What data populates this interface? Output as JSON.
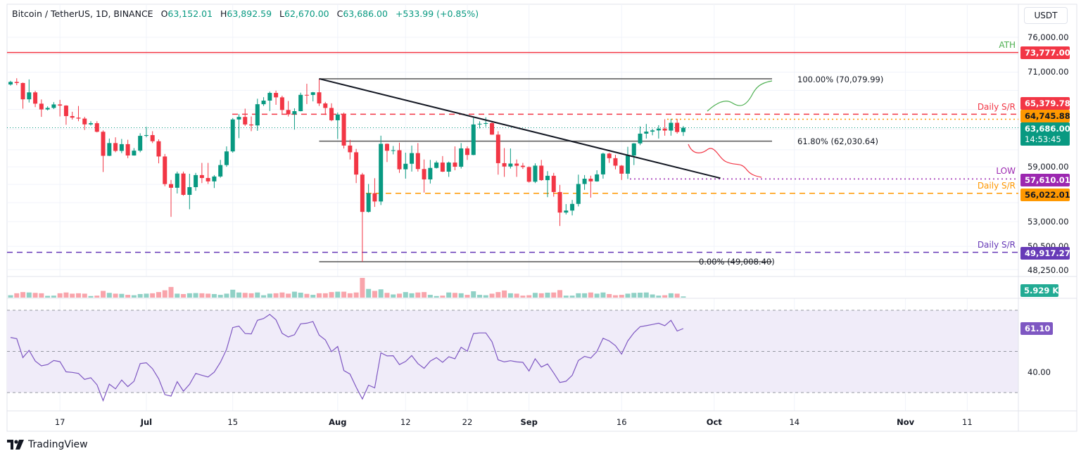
{
  "header": {
    "symbol": "Bitcoin / TetherUS, 1D, BINANCE",
    "open_label": "O",
    "open": "63,152.01",
    "high_label": "H",
    "high": "63,892.59",
    "low_label": "L",
    "low": "62,670.00",
    "close_label": "C",
    "close": "63,686.00",
    "change": "+533.99 (+0.85%)"
  },
  "currency_button": "USDT",
  "branding": "TradingView",
  "colors": {
    "up": "#089981",
    "down": "#f23645",
    "ath": "#f23645",
    "resistance": "#f23645",
    "support_orange": "#ff9800",
    "low": "#9c27b0",
    "support_purple": "#673ab7",
    "rsi": "#7e57c2"
  },
  "price_axis": {
    "scale": "log",
    "ticks": [
      "76,000.00",
      "71,000.00",
      "59,000.00",
      "53,000.00",
      "50,500.00",
      "48,250.00"
    ],
    "price_tags": {
      "ath": "73,777.00",
      "resistance": "65,379.78",
      "high_dotted": "64,745.88",
      "last": "63,686.00",
      "countdown": "14:53:45",
      "low": "57,610.01",
      "support": "56,022.01",
      "support_2": "49,917.27",
      "volume": "5.929 K",
      "rsi": "61.10"
    }
  },
  "annotations": {
    "ath": "ATH",
    "resistance": "Daily S/R",
    "low": "LOW",
    "support": "Daily S/R",
    "support_2": "Daily S/R",
    "fib_100": "100.00% (70,079.99)",
    "fib_618": "61.80% (62,030.64)",
    "fib_0": "0.00% (49,008.40)"
  },
  "rsi_axis": {
    "tick": "40.00"
  },
  "time_axis": [
    {
      "label": "17",
      "date": "2024-06-17",
      "month": false
    },
    {
      "label": "Jul",
      "date": "2024-07-01",
      "month": true
    },
    {
      "label": "15",
      "date": "2024-07-15",
      "month": false
    },
    {
      "label": "Aug",
      "date": "2024-08-01",
      "month": true
    },
    {
      "label": "12",
      "date": "2024-08-12",
      "month": false
    },
    {
      "label": "22",
      "date": "2024-08-22",
      "month": false
    },
    {
      "label": "Sep",
      "date": "2024-09-01",
      "month": true
    },
    {
      "label": "16",
      "date": "2024-09-16",
      "month": false
    },
    {
      "label": "Oct",
      "date": "2024-10-01",
      "month": true
    },
    {
      "label": "14",
      "date": "2024-10-14",
      "month": false
    },
    {
      "label": "Nov",
      "date": "2024-11-01",
      "month": true
    },
    {
      "label": "11",
      "date": "2024-11-11",
      "month": false
    }
  ],
  "chart_data": {
    "type": "candlestick",
    "columns": [
      "date",
      "open",
      "high",
      "low",
      "close",
      "volume_k"
    ],
    "candles": [
      [
        "2024-06-09",
        69300,
        69800,
        69150,
        69650,
        12
      ],
      [
        "2024-06-10",
        69650,
        70150,
        69200,
        69500,
        22
      ],
      [
        "2024-06-11",
        69500,
        69560,
        66100,
        67320,
        28
      ],
      [
        "2024-06-12",
        67320,
        69990,
        66900,
        68240,
        26
      ],
      [
        "2024-06-13",
        68240,
        68450,
        66300,
        66750,
        24
      ],
      [
        "2024-06-14",
        66750,
        67300,
        65050,
        66000,
        22
      ],
      [
        "2024-06-15",
        66000,
        66400,
        65870,
        66200,
        9
      ],
      [
        "2024-06-16",
        66200,
        66950,
        66050,
        66650,
        10
      ],
      [
        "2024-06-17",
        66650,
        67250,
        65100,
        66500,
        22
      ],
      [
        "2024-06-18",
        66500,
        66550,
        64050,
        65150,
        26
      ],
      [
        "2024-06-19",
        65150,
        65700,
        64700,
        64950,
        20
      ],
      [
        "2024-06-20",
        64950,
        66450,
        64500,
        64830,
        22
      ],
      [
        "2024-06-21",
        64830,
        65050,
        63400,
        64100,
        20
      ],
      [
        "2024-06-22",
        64100,
        64500,
        63950,
        64250,
        8
      ],
      [
        "2024-06-23",
        64250,
        64500,
        63100,
        63180,
        10
      ],
      [
        "2024-06-24",
        63180,
        63350,
        58400,
        60280,
        34
      ],
      [
        "2024-06-25",
        60280,
        62350,
        60250,
        61800,
        24
      ],
      [
        "2024-06-26",
        61800,
        62500,
        60700,
        60860,
        20
      ],
      [
        "2024-06-27",
        60860,
        62300,
        60600,
        61670,
        19
      ],
      [
        "2024-06-28",
        61670,
        62200,
        60000,
        60320,
        14
      ],
      [
        "2024-06-29",
        60320,
        61200,
        60300,
        60890,
        12
      ],
      [
        "2024-06-30",
        60890,
        63000,
        60700,
        62680,
        18
      ],
      [
        "2024-07-01",
        62680,
        63800,
        62500,
        62770,
        20
      ],
      [
        "2024-07-02",
        62770,
        63250,
        61800,
        62020,
        22
      ],
      [
        "2024-07-03",
        62020,
        62250,
        59400,
        60200,
        28
      ],
      [
        "2024-07-04",
        60200,
        60500,
        56800,
        57040,
        37
      ],
      [
        "2024-07-05",
        57040,
        57500,
        53500,
        56630,
        54
      ],
      [
        "2024-07-06",
        56630,
        58450,
        56000,
        58230,
        20
      ],
      [
        "2024-07-07",
        58230,
        58450,
        55750,
        55850,
        18
      ],
      [
        "2024-07-08",
        55850,
        58200,
        54300,
        56700,
        22
      ],
      [
        "2024-07-09",
        56700,
        58300,
        56300,
        58050,
        23
      ],
      [
        "2024-07-10",
        58050,
        59450,
        57150,
        57720,
        22
      ],
      [
        "2024-07-11",
        57720,
        59450,
        57050,
        57340,
        20
      ],
      [
        "2024-07-12",
        57340,
        58050,
        56600,
        57890,
        18
      ],
      [
        "2024-07-13",
        57890,
        59800,
        57750,
        59200,
        14
      ],
      [
        "2024-07-14",
        59200,
        61400,
        59000,
        60800,
        20
      ],
      [
        "2024-07-15",
        60800,
        64900,
        60650,
        64720,
        40
      ],
      [
        "2024-07-16",
        64720,
        65400,
        62400,
        65040,
        26
      ],
      [
        "2024-07-17",
        65040,
        66100,
        63900,
        64090,
        24
      ],
      [
        "2024-07-18",
        64090,
        65100,
        63250,
        63970,
        22
      ],
      [
        "2024-07-19",
        63970,
        67400,
        63300,
        66680,
        26
      ],
      [
        "2024-07-20",
        66680,
        67600,
        66450,
        67150,
        12
      ],
      [
        "2024-07-21",
        67150,
        68350,
        65800,
        68170,
        20
      ],
      [
        "2024-07-22",
        68170,
        68480,
        66600,
        67580,
        22
      ],
      [
        "2024-07-23",
        67580,
        67800,
        65450,
        65930,
        26
      ],
      [
        "2024-07-24",
        65930,
        67100,
        65100,
        65370,
        20
      ],
      [
        "2024-07-25",
        65370,
        66150,
        63450,
        65780,
        30
      ],
      [
        "2024-07-26",
        65780,
        68200,
        65750,
        67910,
        25
      ],
      [
        "2024-07-27",
        67910,
        69400,
        66700,
        67900,
        19
      ],
      [
        "2024-07-28",
        67900,
        68300,
        67050,
        68250,
        14
      ],
      [
        "2024-07-29",
        68250,
        70079.99,
        66450,
        66780,
        22
      ],
      [
        "2024-07-30",
        66780,
        66980,
        65300,
        66190,
        22
      ],
      [
        "2024-07-31",
        66190,
        66800,
        64500,
        64620,
        28
      ],
      [
        "2024-08-01",
        64620,
        65600,
        62300,
        65350,
        30
      ],
      [
        "2024-08-02",
        65350,
        65600,
        61150,
        61500,
        30
      ],
      [
        "2024-08-03",
        61500,
        62200,
        59850,
        60700,
        22
      ],
      [
        "2024-08-04",
        60700,
        61100,
        57150,
        58110,
        26
      ],
      [
        "2024-08-05",
        58110,
        58300,
        49008.4,
        54020,
        100
      ],
      [
        "2024-08-06",
        54020,
        57050,
        53950,
        56030,
        44
      ],
      [
        "2024-08-07",
        56030,
        57700,
        54550,
        55130,
        34
      ],
      [
        "2024-08-08",
        55130,
        62700,
        54750,
        61710,
        42
      ],
      [
        "2024-08-09",
        61710,
        61750,
        59550,
        60880,
        24
      ],
      [
        "2024-08-10",
        60880,
        61450,
        60450,
        60940,
        16
      ],
      [
        "2024-08-11",
        60940,
        61850,
        58300,
        58710,
        20
      ],
      [
        "2024-08-12",
        58710,
        60650,
        57650,
        59350,
        28
      ],
      [
        "2024-08-13",
        59350,
        61500,
        58450,
        60600,
        22
      ],
      [
        "2024-08-14",
        60600,
        61800,
        58450,
        58740,
        26
      ],
      [
        "2024-08-15",
        58740,
        59850,
        56100,
        57560,
        28
      ],
      [
        "2024-08-16",
        57560,
        59800,
        57100,
        58870,
        14
      ],
      [
        "2024-08-17",
        58870,
        59700,
        58800,
        59490,
        8
      ],
      [
        "2024-08-18",
        59490,
        60250,
        58400,
        58440,
        10
      ],
      [
        "2024-08-19",
        58440,
        59600,
        57850,
        59490,
        26
      ],
      [
        "2024-08-20",
        59490,
        61400,
        58600,
        59010,
        24
      ],
      [
        "2024-08-21",
        59010,
        61800,
        58800,
        61160,
        22
      ],
      [
        "2024-08-22",
        61160,
        61400,
        59800,
        60380,
        14
      ],
      [
        "2024-08-23",
        60380,
        64950,
        60350,
        64090,
        32
      ],
      [
        "2024-08-24",
        64090,
        64500,
        63600,
        64180,
        14
      ],
      [
        "2024-08-25",
        64180,
        65000,
        63800,
        64260,
        12
      ],
      [
        "2024-08-26",
        64260,
        64500,
        62800,
        62830,
        20
      ],
      [
        "2024-08-27",
        62830,
        63250,
        58100,
        59420,
        28
      ],
      [
        "2024-08-28",
        59420,
        61200,
        57850,
        59030,
        36
      ],
      [
        "2024-08-29",
        59030,
        61150,
        58800,
        59370,
        22
      ],
      [
        "2024-08-30",
        59370,
        59850,
        57850,
        59120,
        20
      ],
      [
        "2024-08-31",
        59120,
        59450,
        58750,
        58970,
        10
      ],
      [
        "2024-09-01",
        58970,
        59050,
        57200,
        57300,
        12
      ],
      [
        "2024-09-02",
        57300,
        59400,
        57150,
        59130,
        24
      ],
      [
        "2024-09-03",
        59130,
        59800,
        57400,
        57480,
        22
      ],
      [
        "2024-09-04",
        57480,
        58500,
        55600,
        57970,
        25
      ],
      [
        "2024-09-05",
        57970,
        58300,
        55650,
        56160,
        26
      ],
      [
        "2024-09-06",
        56160,
        56950,
        52550,
        53950,
        38
      ],
      [
        "2024-09-07",
        53950,
        54850,
        53750,
        54160,
        10
      ],
      [
        "2024-09-08",
        54160,
        55300,
        53650,
        54870,
        10
      ],
      [
        "2024-09-09",
        54870,
        58100,
        54600,
        57050,
        22
      ],
      [
        "2024-09-10",
        57050,
        58050,
        56400,
        57640,
        22
      ],
      [
        "2024-09-11",
        57640,
        57980,
        55550,
        57340,
        26
      ],
      [
        "2024-09-12",
        57340,
        58600,
        57300,
        58130,
        20
      ],
      [
        "2024-09-13",
        58130,
        60650,
        57650,
        60540,
        26
      ],
      [
        "2024-09-14",
        60540,
        60650,
        59450,
        60000,
        18
      ],
      [
        "2024-09-15",
        60000,
        60400,
        58700,
        59130,
        12
      ],
      [
        "2024-09-16",
        59130,
        59200,
        57500,
        58210,
        14
      ],
      [
        "2024-09-17",
        58210,
        61350,
        57610.01,
        60310,
        20
      ],
      [
        "2024-09-18",
        60310,
        61800,
        59200,
        61760,
        24
      ],
      [
        "2024-09-19",
        61760,
        63850,
        61550,
        62950,
        25
      ],
      [
        "2024-09-20",
        62950,
        64150,
        62350,
        63200,
        26
      ],
      [
        "2024-09-21",
        63200,
        63550,
        62750,
        63350,
        16
      ],
      [
        "2024-09-22",
        63350,
        64000,
        62350,
        63580,
        10
      ],
      [
        "2024-09-23",
        63580,
        64750,
        62700,
        63330,
        12
      ],
      [
        "2024-09-24",
        63330,
        64800,
        62700,
        64300,
        22
      ],
      [
        "2024-09-25",
        64300,
        64800,
        62950,
        63150,
        20
      ],
      [
        "2024-09-26",
        63152.01,
        63892.59,
        62670,
        63686,
        5.929
      ]
    ],
    "rsi": [
      56.8,
      56.2,
      47,
      50.5,
      45.3,
      43,
      43.6,
      45.6,
      45,
      40.1,
      39.8,
      39.3,
      36.4,
      37.2,
      33.8,
      26.1,
      34.1,
      31.8,
      36.1,
      32.9,
      35.5,
      44.1,
      44.5,
      41.6,
      36.7,
      29,
      28.3,
      35.3,
      30.7,
      34,
      39.3,
      38.4,
      37.6,
      39.9,
      44.7,
      51,
      61.6,
      62.3,
      58.7,
      58.5,
      65.1,
      66,
      68,
      65.4,
      58.8,
      57,
      58.1,
      63.4,
      63.7,
      64.5,
      57.9,
      55.6,
      49.9,
      52.4,
      40.7,
      39,
      32.6,
      26.9,
      33.6,
      32.3,
      49.3,
      47.8,
      47.9,
      43.6,
      45.1,
      48,
      44.1,
      41.8,
      45.3,
      47,
      44.7,
      47.4,
      46.4,
      52,
      50.1,
      58.7,
      59,
      59,
      54.7,
      45.9,
      44.9,
      45.5,
      44.9,
      44.7,
      40.5,
      46.4,
      42.4,
      43.9,
      39.5,
      34.9,
      35.5,
      38.4,
      45.6,
      47.6,
      46.8,
      49.9,
      56.4,
      55.1,
      52.8,
      48.7,
      55.1,
      59.1,
      62,
      62.5,
      63.1,
      63.7,
      62.5,
      65.1,
      59.9,
      61.1
    ],
    "rsi_levels": [
      70,
      50,
      30
    ],
    "levels": {
      "ath": 73777.0,
      "resistance": 65379.78,
      "high_dotted": 64745.88,
      "last": 63686.0,
      "fib_100": 70079.99,
      "fib_618": 62030.64,
      "fib_0": 49008.4,
      "low": 57610.01,
      "support": 56022.01,
      "support_2": 49917.27
    },
    "trendline": [
      [
        "2024-07-29",
        70079.99
      ],
      [
        "2024-10-02",
        57700
      ]
    ],
    "ylim": [
      47800,
      78500
    ]
  }
}
